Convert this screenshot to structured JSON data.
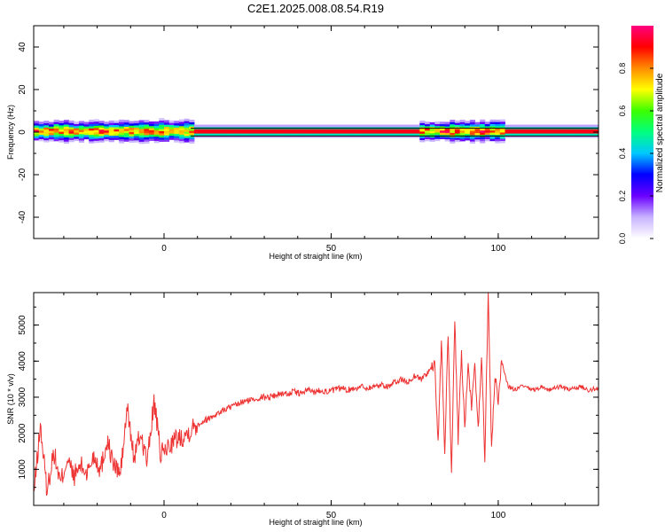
{
  "title": "C2E1.2025.008.08.54.R19",
  "chart_data": [
    {
      "type": "heatmap",
      "xlabel": "Height of straight line (km)",
      "ylabel": "Frequency (Hz)",
      "xlim": [
        -39,
        130
      ],
      "ylim": [
        -50,
        50
      ],
      "xticks": [
        0,
        50,
        100
      ],
      "yticks": [
        -40,
        -20,
        0,
        20,
        40
      ],
      "colorbar": {
        "label": "Normalized spectral amplitude",
        "range": [
          0,
          1
        ],
        "ticks": [
          "0.0",
          "0.2",
          "0.4",
          "0.6",
          "0.8"
        ],
        "colors": [
          "#ffffff",
          "#c8b4ff",
          "#6a00ff",
          "#0000ff",
          "#00c8ff",
          "#00ff7f",
          "#3cff00",
          "#ffff00",
          "#ff8c00",
          "#ff0000",
          "#ff007f"
        ]
      },
      "band": {
        "center_frequency": 0,
        "segments": [
          {
            "x_start": -39,
            "x_end": -15,
            "half_width": 3,
            "peak": 0.9
          },
          {
            "x_start": -15,
            "x_end": 8,
            "half_width": 3.5,
            "peak": 0.85
          },
          {
            "x_start": 8,
            "x_end": 76,
            "half_width": 1.5,
            "peak": 1.0
          },
          {
            "x_start": 76,
            "x_end": 101,
            "half_width": 3,
            "peak": 0.9
          },
          {
            "x_start": 101,
            "x_end": 130,
            "half_width": 1.5,
            "peak": 1.0
          }
        ]
      }
    },
    {
      "type": "line",
      "xlabel": "Height of straight line (km)",
      "ylabel": "SNR (10 * v/v)",
      "xlim": [
        -39,
        130
      ],
      "ylim": [
        0,
        5900
      ],
      "xticks": [
        0,
        50,
        100
      ],
      "yticks": [
        1000,
        2000,
        3000,
        4000,
        5000
      ],
      "color": "#ee3333",
      "series": [
        {
          "x": [
            -39,
            -37,
            -35,
            -33,
            -31,
            -29,
            -27,
            -25,
            -23,
            -21,
            -19,
            -17,
            -15,
            -13,
            -11,
            -9,
            -7,
            -5,
            -3,
            -1,
            1,
            3,
            5,
            7,
            9,
            11,
            13,
            15,
            17,
            19,
            21,
            23,
            25,
            27,
            29,
            31,
            33,
            35,
            37,
            39,
            41,
            43,
            45,
            47,
            49,
            51,
            53,
            55,
            57,
            59,
            61,
            63,
            65,
            67,
            69,
            71,
            73,
            75,
            77,
            79,
            81,
            82,
            83,
            84,
            85,
            86,
            87,
            88,
            89,
            90,
            91,
            92,
            93,
            94,
            95,
            96,
            97,
            98,
            99,
            100,
            101,
            103,
            105,
            107,
            109,
            111,
            113,
            115,
            117,
            119,
            121,
            123,
            125,
            127,
            130
          ],
          "y": [
            300,
            2200,
            400,
            1500,
            600,
            1300,
            800,
            1100,
            900,
            1400,
            1000,
            1800,
            1100,
            900,
            2700,
            1300,
            2000,
            1200,
            2900,
            1400,
            1600,
            1800,
            1900,
            2000,
            2200,
            2300,
            2400,
            2500,
            2600,
            2700,
            2750,
            2850,
            2900,
            2950,
            3000,
            3000,
            3050,
            3100,
            3100,
            3150,
            3100,
            3200,
            3150,
            3200,
            3150,
            3200,
            3250,
            3200,
            3250,
            3300,
            3250,
            3300,
            3350,
            3300,
            3400,
            3500,
            3400,
            3600,
            3500,
            3700,
            3900,
            1700,
            4600,
            1400,
            4800,
            900,
            5100,
            1800,
            4200,
            2200,
            3800,
            2700,
            3900,
            2100,
            4100,
            1300,
            5900,
            1500,
            3600,
            2900,
            4000,
            3300,
            3200,
            3300,
            3250,
            3200,
            3300,
            3200,
            3250,
            3300,
            3200,
            3250,
            3300,
            3200,
            3250
          ]
        }
      ]
    }
  ]
}
